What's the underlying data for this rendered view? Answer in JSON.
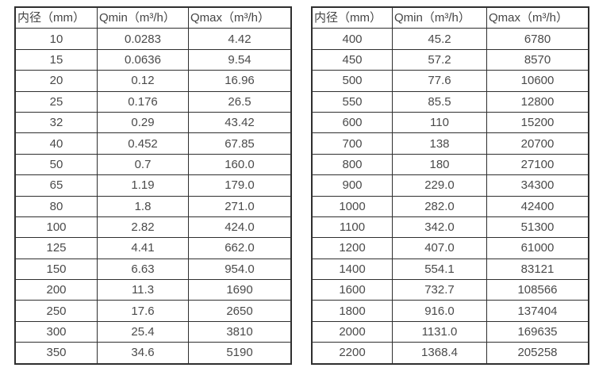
{
  "page": {
    "background_color": "#ffffff",
    "text_color": "#4a4a4a",
    "border_color": "#2f2f2f"
  },
  "tables": [
    {
      "name": "flow-range-table-small-diameters",
      "headers": [
        "内径（mm）",
        "Qmin（m³/h）",
        "Qmax（m³/h）"
      ],
      "rows": [
        [
          "10",
          "0.0283",
          "4.42"
        ],
        [
          "15",
          "0.0636",
          "9.54"
        ],
        [
          "20",
          "0.12",
          "16.96"
        ],
        [
          "25",
          "0.176",
          "26.5"
        ],
        [
          "32",
          "0.29",
          "43.42"
        ],
        [
          "40",
          "0.452",
          "67.85"
        ],
        [
          "50",
          "0.7",
          "160.0"
        ],
        [
          "65",
          "1.19",
          "179.0"
        ],
        [
          "80",
          "1.8",
          "271.0"
        ],
        [
          "100",
          "2.82",
          "424.0"
        ],
        [
          "125",
          "4.41",
          "662.0"
        ],
        [
          "150",
          "6.63",
          "954.0"
        ],
        [
          "200",
          "11.3",
          "1690"
        ],
        [
          "250",
          "17.6",
          "2650"
        ],
        [
          "300",
          "25.4",
          "3810"
        ],
        [
          "350",
          "34.6",
          "5190"
        ]
      ]
    },
    {
      "name": "flow-range-table-large-diameters",
      "headers": [
        "内径（mm）",
        "Qmin（m³/h）",
        "Qmax（m³/h）"
      ],
      "rows": [
        [
          "400",
          "45.2",
          "6780"
        ],
        [
          "450",
          "57.2",
          "8570"
        ],
        [
          "500",
          "77.6",
          "10600"
        ],
        [
          "550",
          "85.5",
          "12800"
        ],
        [
          "600",
          "110",
          "15200"
        ],
        [
          "700",
          "138",
          "20700"
        ],
        [
          "800",
          "180",
          "27100"
        ],
        [
          "900",
          "229.0",
          "34300"
        ],
        [
          "1000",
          "282.0",
          "42400"
        ],
        [
          "1100",
          "342.0",
          "51300"
        ],
        [
          "1200",
          "407.0",
          "61000"
        ],
        [
          "1400",
          "554.1",
          "83121"
        ],
        [
          "1600",
          "732.7",
          "108566"
        ],
        [
          "1800",
          "916.0",
          "137404"
        ],
        [
          "2000",
          "1131.0",
          "169635"
        ],
        [
          "2200",
          "1368.4",
          "205258"
        ]
      ]
    }
  ]
}
